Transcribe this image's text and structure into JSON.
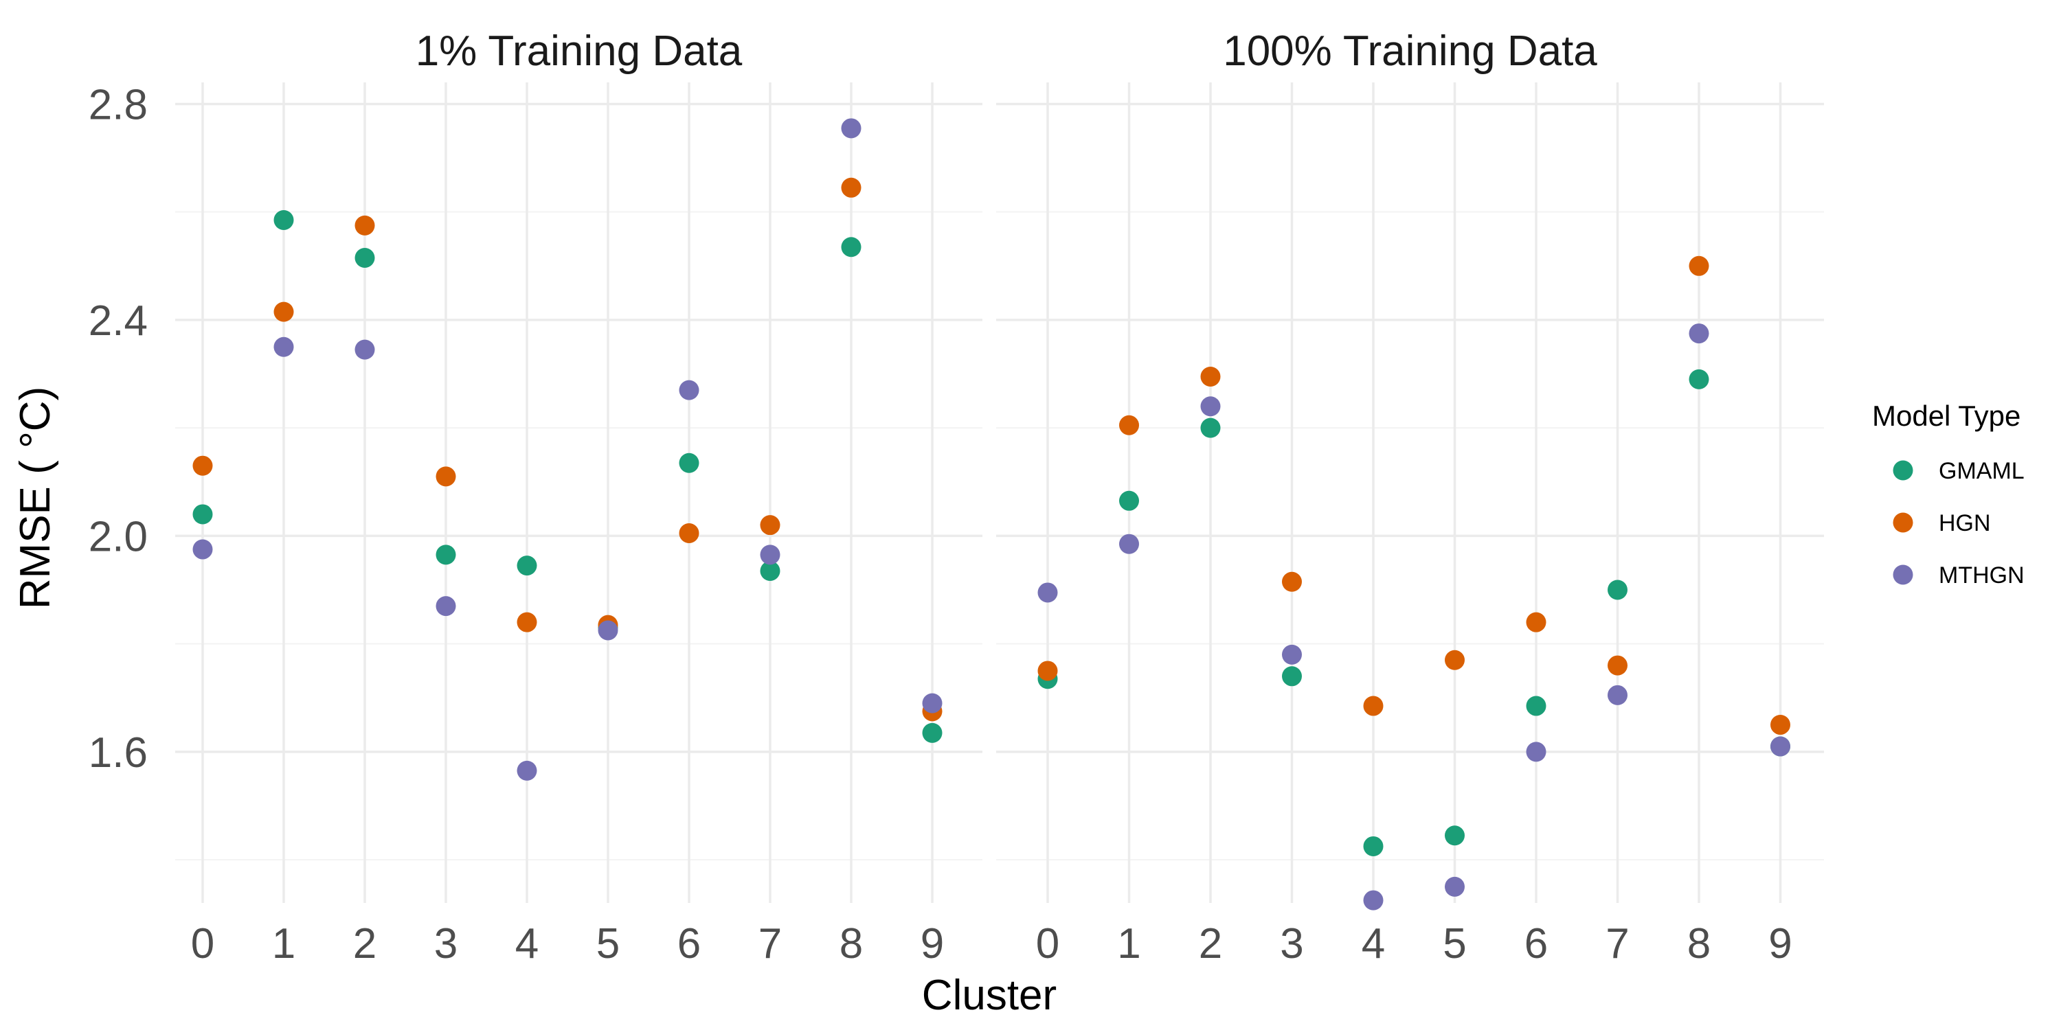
{
  "chart_data": {
    "type": "scatter",
    "xlabel": "Cluster",
    "ylabel": "RMSE ( °C)",
    "ylim": [
      1.32,
      2.84
    ],
    "y_ticks": [
      "1.6",
      "2.0",
      "2.4",
      "2.8"
    ],
    "x_categories": [
      "0",
      "1",
      "2",
      "3",
      "4",
      "5",
      "6",
      "7",
      "8",
      "9"
    ],
    "legend": {
      "title": "Model Type",
      "position": "right",
      "entries": [
        {
          "name": "GMAML",
          "color": "#1b9e77"
        },
        {
          "name": "HGN",
          "color": "#d95f02"
        },
        {
          "name": "MTHGN",
          "color": "#7570b3"
        }
      ]
    },
    "grid": true,
    "panels": [
      {
        "title": "1% Training Data",
        "series": [
          {
            "name": "GMAML",
            "x": [
              0,
              1,
              2,
              3,
              4,
              5,
              6,
              7,
              8,
              9
            ],
            "y": [
              2.04,
              2.585,
              2.515,
              1.965,
              1.945,
              1.83,
              2.135,
              1.935,
              2.535,
              1.635
            ]
          },
          {
            "name": "HGN",
            "x": [
              0,
              1,
              2,
              3,
              4,
              5,
              6,
              7,
              8,
              9
            ],
            "y": [
              2.13,
              2.415,
              2.575,
              2.11,
              1.84,
              1.835,
              2.005,
              2.02,
              2.645,
              1.675
            ]
          },
          {
            "name": "MTHGN",
            "x": [
              0,
              1,
              2,
              3,
              4,
              5,
              6,
              7,
              8,
              9
            ],
            "y": [
              1.975,
              2.35,
              2.345,
              1.87,
              1.565,
              1.825,
              2.27,
              1.965,
              2.755,
              1.69
            ]
          }
        ]
      },
      {
        "title": "100% Training Data",
        "series": [
          {
            "name": "GMAML",
            "x": [
              0,
              1,
              2,
              3,
              4,
              5,
              6,
              7,
              8,
              9
            ],
            "y": [
              1.735,
              2.065,
              2.2,
              1.74,
              1.425,
              1.445,
              1.685,
              1.9,
              2.29,
              1.61
            ]
          },
          {
            "name": "HGN",
            "x": [
              0,
              1,
              2,
              3,
              4,
              5,
              6,
              7,
              8,
              9
            ],
            "y": [
              1.75,
              2.205,
              2.295,
              1.915,
              1.685,
              1.77,
              1.84,
              1.76,
              2.5,
              1.65
            ]
          },
          {
            "name": "MTHGN",
            "x": [
              0,
              1,
              2,
              3,
              4,
              5,
              6,
              7,
              8,
              9
            ],
            "y": [
              1.895,
              1.985,
              2.24,
              1.78,
              1.325,
              1.35,
              1.6,
              1.705,
              2.375,
              1.61
            ]
          }
        ]
      }
    ]
  }
}
